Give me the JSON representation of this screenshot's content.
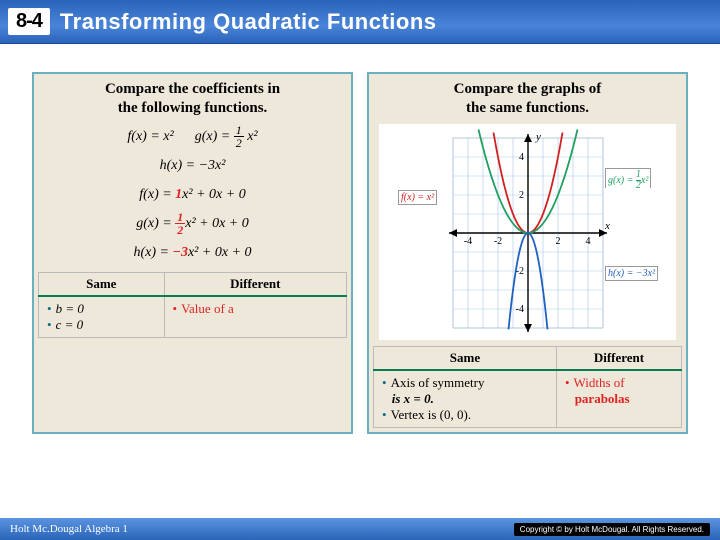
{
  "header": {
    "chapnum": "8-4",
    "title": "Transforming Quadratic Functions"
  },
  "left": {
    "heading_l1": "Compare the coefficients in",
    "heading_l2": "the following functions.",
    "fx": "f(x) = x²",
    "gx_pre": "g(x) = ",
    "g_num": "1",
    "g_den": "2",
    "gx_post": " x²",
    "hx": "h(x) = −3x²",
    "f_exp_pre": "f(x) = ",
    "f_a": "1",
    "f_exp_post": "x² + 0x + 0",
    "g_exp_pre": "g(x) = ",
    "g_exp_post": "x² + 0x + 0",
    "h_exp_pre": "h(x) = ",
    "h_a": "−3",
    "h_exp_post": "x² + 0x + 0",
    "th_same": "Same",
    "th_diff": "Different",
    "same1": "b = 0",
    "same2": "c = 0",
    "diff1": "Value of a"
  },
  "right": {
    "heading_l1": "Compare the graphs of",
    "heading_l2": "the same functions.",
    "th_same": "Same",
    "th_diff": "Different",
    "same1": "Axis of symmetry",
    "same1b": "is x = 0.",
    "same2": "Vertex is (0, 0).",
    "diff1": "Widths of",
    "diff1b": "parabolas",
    "chart": {
      "type": "parabola-plot",
      "xlim": [
        -5,
        5
      ],
      "ylim": [
        -5,
        5
      ],
      "xticks": [
        -4,
        -2,
        2,
        4
      ],
      "yticks": [
        -4,
        -2,
        2,
        4
      ],
      "background": "#ffffff",
      "grid_color": "#a8c8e8",
      "axis_color": "#000000",
      "curves": [
        {
          "name": "f(x) = x²",
          "color": "#d22020",
          "a": 1,
          "label_side": "left"
        },
        {
          "name": "g(x) = ½x²",
          "color": "#20a060",
          "a": 0.5,
          "label_side": "right",
          "label_num": "1",
          "label_den": "2"
        },
        {
          "name": "h(x) = −3x²",
          "color": "#2060c0",
          "a": -3,
          "label_side": "right"
        }
      ]
    }
  },
  "footer": {
    "left": "Holt Mc.Dougal Algebra 1",
    "right": "Copyright © by Holt McDougal. All Rights Reserved."
  }
}
